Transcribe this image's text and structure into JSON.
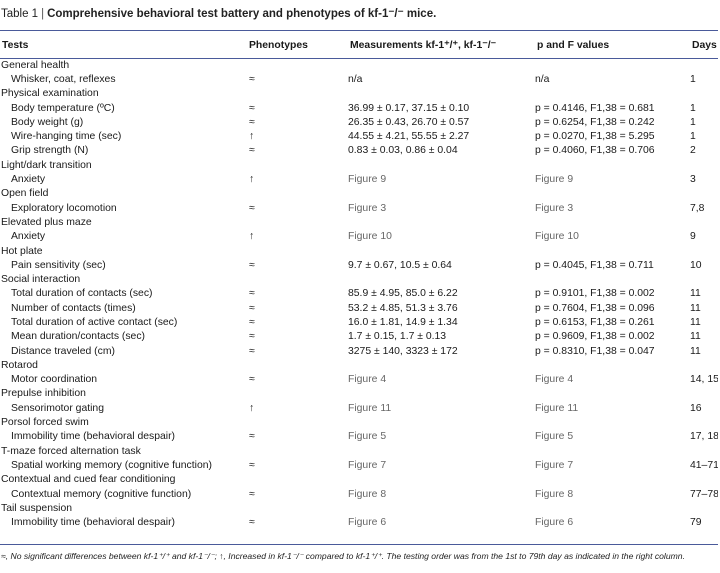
{
  "caption": {
    "label": "Table 1",
    "separator": "|",
    "title": "Comprehensive behavioral test battery and phenotypes of kf-1⁻/⁻ mice."
  },
  "headers": [
    "Tests",
    "Phenotypes",
    "Measurements kf-1⁺/⁺, kf-1⁻/⁻",
    "p and F values",
    "Days"
  ],
  "rows": [
    {
      "kind": "cat",
      "test": "General health",
      "phen": "",
      "meas": "",
      "pf": "",
      "days": ""
    },
    {
      "kind": "sub",
      "test": "Whisker, coat, reflexes",
      "phen": "≈",
      "meas": "n/a",
      "pf": "n/a",
      "days": "1"
    },
    {
      "kind": "cat",
      "test": "Physical examination",
      "phen": "",
      "meas": "",
      "pf": "",
      "days": ""
    },
    {
      "kind": "sub",
      "test": "Body temperature (ºC)",
      "phen": "≈",
      "meas": "36.99 ± 0.17, 37.15 ± 0.10",
      "pf": "p = 0.4146, F1,38 = 0.681",
      "days": "1"
    },
    {
      "kind": "sub",
      "test": "Body weight (g)",
      "phen": "≈",
      "meas": "26.35 ± 0.43, 26.70 ± 0.57",
      "pf": "p = 0.6254, F1,38 = 0.242",
      "days": "1"
    },
    {
      "kind": "sub",
      "test": "Wire-hanging time (sec)",
      "phen": "↑",
      "meas": "44.55 ± 4.21, 55.55 ± 2.27",
      "pf": "p = 0.0270, F1,38 = 5.295",
      "days": "1"
    },
    {
      "kind": "sub",
      "test": "Grip strength (N)",
      "phen": "≈",
      "meas": "0.83 ± 0.03, 0.86 ± 0.04",
      "pf": "p = 0.4060, F1,38 = 0.706",
      "days": "2"
    },
    {
      "kind": "cat",
      "test": "Light/dark transition",
      "phen": "",
      "meas": "",
      "pf": "",
      "days": ""
    },
    {
      "kind": "sub",
      "test": "Anxiety",
      "phen": "↑",
      "meas": "Figure 9",
      "pf": "Figure 9",
      "days": "3",
      "fig": true
    },
    {
      "kind": "cat",
      "test": "Open field",
      "phen": "",
      "meas": "",
      "pf": "",
      "days": ""
    },
    {
      "kind": "sub",
      "test": "Exploratory locomotion",
      "phen": "≈",
      "meas": "Figure 3",
      "pf": "Figure 3",
      "days": "7,8",
      "fig": true
    },
    {
      "kind": "cat",
      "test": "Elevated plus maze",
      "phen": "",
      "meas": "",
      "pf": "",
      "days": ""
    },
    {
      "kind": "sub",
      "test": "Anxiety",
      "phen": "↑",
      "meas": "Figure 10",
      "pf": "Figure 10",
      "days": "9",
      "fig": true
    },
    {
      "kind": "cat",
      "test": "Hot plate",
      "phen": "",
      "meas": "",
      "pf": "",
      "days": ""
    },
    {
      "kind": "sub",
      "test": "Pain sensitivity (sec)",
      "phen": "≈",
      "meas": "9.7 ± 0.67, 10.5 ± 0.64",
      "pf": "p = 0.4045, F1,38 = 0.711",
      "days": "10"
    },
    {
      "kind": "cat",
      "test": "Social interaction",
      "phen": "",
      "meas": "",
      "pf": "",
      "days": ""
    },
    {
      "kind": "sub",
      "test": "Total duration of contacts (sec)",
      "phen": "≈",
      "meas": "85.9 ± 4.95, 85.0 ± 6.22",
      "pf": "p = 0.9101, F1,38 = 0.002",
      "days": "11"
    },
    {
      "kind": "sub",
      "test": "Number of contacts (times)",
      "phen": "≈",
      "meas": "53.2 ± 4.85, 51.3 ± 3.76",
      "pf": "p = 0.7604, F1,38 = 0.096",
      "days": "11"
    },
    {
      "kind": "sub",
      "test": "Total duration of active contact (sec)",
      "phen": "≈",
      "meas": "16.0 ± 1.81, 14.9 ± 1.34",
      "pf": "p = 0.6153, F1,38 = 0.261",
      "days": "11"
    },
    {
      "kind": "sub",
      "test": "Mean duration/contacts (sec)",
      "phen": "≈",
      "meas": "1.7 ± 0.15, 1.7 ± 0.13",
      "pf": "p = 0.9609, F1,38 = 0.002",
      "days": "11"
    },
    {
      "kind": "sub",
      "test": "Distance traveled (cm)",
      "phen": "≈",
      "meas": "3275 ± 140, 3323 ± 172",
      "pf": "p = 0.8310, F1,38 = 0.047",
      "days": "11"
    },
    {
      "kind": "cat",
      "test": "Rotarod",
      "phen": "",
      "meas": "",
      "pf": "",
      "days": ""
    },
    {
      "kind": "sub",
      "test": "Motor coordination",
      "phen": "≈",
      "meas": "Figure 4",
      "pf": "Figure 4",
      "days": "14, 15",
      "fig": true
    },
    {
      "kind": "cat",
      "test": "Prepulse inhibition",
      "phen": "",
      "meas": "",
      "pf": "",
      "days": ""
    },
    {
      "kind": "sub",
      "test": "Sensorimotor gating",
      "phen": "↑",
      "meas": "Figure 11",
      "pf": "Figure 11",
      "days": "16",
      "fig": true
    },
    {
      "kind": "cat",
      "test": "Porsol forced swim",
      "phen": "",
      "meas": "",
      "pf": "",
      "days": ""
    },
    {
      "kind": "sub",
      "test": "Immobility time (behavioral despair)",
      "phen": "≈",
      "meas": "Figure 5",
      "pf": "Figure 5",
      "days": "17, 18",
      "fig": true
    },
    {
      "kind": "cat",
      "test": "T-maze forced alternation task",
      "phen": "",
      "meas": "",
      "pf": "",
      "days": ""
    },
    {
      "kind": "sub",
      "test": "Spatial working memory (cognitive function)",
      "phen": "≈",
      "meas": "Figure 7",
      "pf": "Figure 7",
      "days": "41–71",
      "fig": true
    },
    {
      "kind": "cat",
      "test": "Contextual and cued fear conditioning",
      "phen": "",
      "meas": "",
      "pf": "",
      "days": ""
    },
    {
      "kind": "sub",
      "test": "Contextual memory (cognitive function)",
      "phen": "≈",
      "meas": "Figure 8",
      "pf": "Figure 8",
      "days": "77–78",
      "fig": true
    },
    {
      "kind": "cat",
      "test": "Tail suspension",
      "phen": "",
      "meas": "",
      "pf": "",
      "days": ""
    },
    {
      "kind": "sub",
      "test": "Immobility time (behavioral despair)",
      "phen": "≈",
      "meas": "Figure 6",
      "pf": "Figure 6",
      "days": "79",
      "fig": true
    }
  ],
  "footnote": "≈, No significant differences between kf-1⁺/⁺ and kf-1⁻/⁻; ↑, Increased in kf-1⁻/⁻ compared to kf-1⁺/⁺. The testing order was from the 1st to 79th day as indicated in the right column."
}
